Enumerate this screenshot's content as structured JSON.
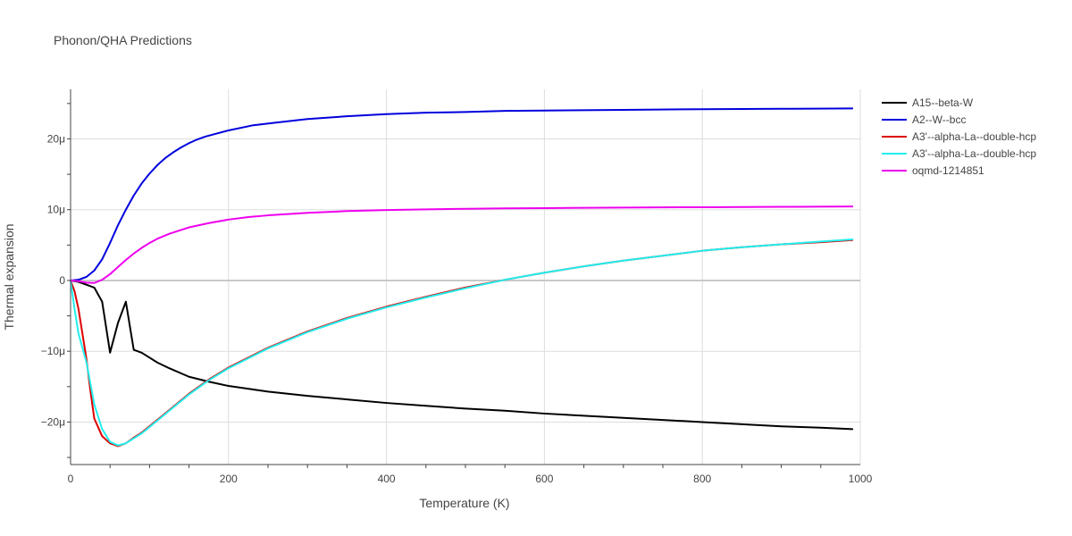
{
  "chart_data": {
    "type": "line",
    "title": "Phonon/QHA Predictions",
    "xlabel": "Temperature (K)",
    "ylabel": "Thermal expansion",
    "xlim": [
      0,
      1000
    ],
    "ylim": [
      -26,
      27
    ],
    "x_ticks": [
      0,
      200,
      400,
      600,
      800,
      1000
    ],
    "y_ticks": [
      -20,
      -10,
      0,
      10,
      20
    ],
    "y_tick_labels": [
      "−20μ",
      "−10μ",
      "0",
      "10μ",
      "20μ"
    ],
    "grid": true,
    "zeroline": true,
    "legend_position": "right",
    "series": [
      {
        "name": "A15--beta-W",
        "color": "#000000",
        "x": [
          0,
          10,
          20,
          30,
          40,
          50,
          60,
          70,
          80,
          90,
          100,
          110,
          125,
          150,
          175,
          200,
          250,
          300,
          350,
          400,
          450,
          500,
          550,
          600,
          650,
          700,
          750,
          800,
          850,
          900,
          950,
          990
        ],
        "y": [
          0,
          -0.2,
          -0.6,
          -1.0,
          -3.0,
          -10.2,
          -6.0,
          -3.0,
          -9.8,
          -10.2,
          -10.9,
          -11.6,
          -12.4,
          -13.6,
          -14.3,
          -14.9,
          -15.7,
          -16.3,
          -16.8,
          -17.3,
          -17.7,
          -18.1,
          -18.4,
          -18.8,
          -19.1,
          -19.4,
          -19.7,
          -20.0,
          -20.3,
          -20.6,
          -20.8,
          -21.0
        ]
      },
      {
        "name": "A2--W--bcc",
        "color": "#0000dd",
        "x": [
          0,
          10,
          20,
          30,
          40,
          50,
          60,
          70,
          80,
          90,
          100,
          110,
          120,
          130,
          140,
          150,
          160,
          170,
          180,
          200,
          230,
          260,
          300,
          350,
          400,
          450,
          500,
          550,
          600,
          700,
          800,
          900,
          990
        ],
        "y": [
          0,
          0.1,
          0.5,
          1.4,
          3.0,
          5.3,
          7.8,
          10.0,
          12.0,
          13.7,
          15.1,
          16.3,
          17.3,
          18.1,
          18.8,
          19.4,
          19.9,
          20.3,
          20.6,
          21.2,
          21.9,
          22.3,
          22.8,
          23.2,
          23.5,
          23.7,
          23.8,
          23.95,
          24.0,
          24.1,
          24.2,
          24.25,
          24.3
        ]
      },
      {
        "name": "A3'--alpha-La--double-hcp",
        "color": "#dd0000",
        "x": [
          0,
          5,
          10,
          15,
          20,
          25,
          30,
          40,
          50,
          60,
          70,
          80,
          90,
          100,
          125,
          150,
          175,
          200,
          250,
          300,
          350,
          400,
          450,
          500,
          550,
          600,
          650,
          700,
          750,
          800,
          850,
          900,
          950,
          990
        ],
        "y": [
          0,
          -1.5,
          -4.0,
          -7.5,
          -11.0,
          -15.5,
          -19.5,
          -22.0,
          -23.0,
          -23.4,
          -23.0,
          -22.2,
          -21.5,
          -20.6,
          -18.3,
          -16.0,
          -14.0,
          -12.3,
          -9.5,
          -7.2,
          -5.3,
          -3.7,
          -2.3,
          -1.0,
          0.1,
          1.1,
          2.0,
          2.8,
          3.5,
          4.2,
          4.7,
          5.1,
          5.4,
          5.7
        ]
      },
      {
        "name": "A3'--alpha-La--double-hcp",
        "color": "#22eeee",
        "x": [
          0,
          5,
          10,
          15,
          20,
          25,
          30,
          40,
          50,
          60,
          70,
          80,
          90,
          100,
          125,
          150,
          175,
          200,
          250,
          300,
          350,
          400,
          450,
          500,
          550,
          600,
          650,
          700,
          750,
          800,
          850,
          900,
          950,
          990
        ],
        "y": [
          0,
          -4.0,
          -7.5,
          -9.5,
          -11.5,
          -14.5,
          -17.5,
          -21.0,
          -22.8,
          -23.3,
          -23.0,
          -22.3,
          -21.6,
          -20.7,
          -18.4,
          -16.1,
          -14.1,
          -12.4,
          -9.6,
          -7.3,
          -5.4,
          -3.8,
          -2.4,
          -1.1,
          0.1,
          1.1,
          2.0,
          2.8,
          3.5,
          4.2,
          4.7,
          5.1,
          5.5,
          5.8
        ]
      },
      {
        "name": "oqmd-1214851",
        "color": "#ee00ee",
        "x": [
          0,
          10,
          20,
          30,
          40,
          50,
          60,
          70,
          80,
          90,
          100,
          110,
          125,
          150,
          175,
          200,
          225,
          250,
          300,
          350,
          400,
          450,
          500,
          550,
          600,
          700,
          800,
          900,
          990
        ],
        "y": [
          0,
          -0.1,
          -0.3,
          -0.35,
          0.1,
          0.9,
          1.9,
          2.9,
          3.8,
          4.6,
          5.3,
          5.9,
          6.6,
          7.5,
          8.1,
          8.6,
          8.95,
          9.2,
          9.55,
          9.8,
          9.95,
          10.05,
          10.12,
          10.18,
          10.22,
          10.3,
          10.35,
          10.4,
          10.45
        ]
      }
    ]
  }
}
